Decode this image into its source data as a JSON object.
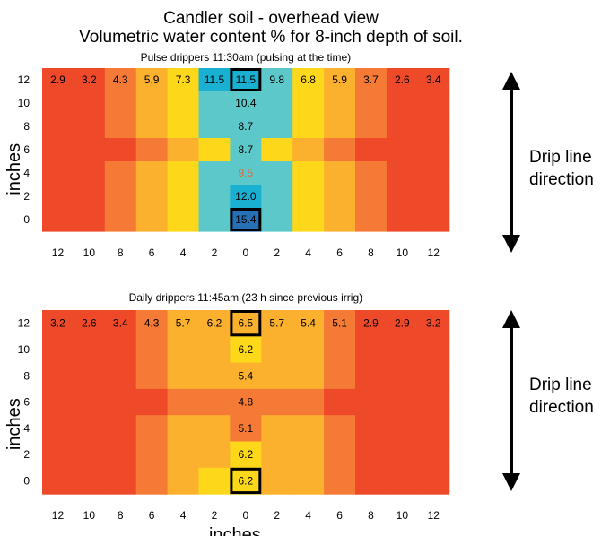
{
  "titles": {
    "line1": "Candler soil - overhead view",
    "line2": "Volumetric water content % for 8-inch depth of soil."
  },
  "side_label": {
    "line1": "Drip line",
    "line2": "direction"
  },
  "colors": {
    "red": "#ee4a2a",
    "orange": "#f57a36",
    "light_orange": "#fbb12e",
    "yellow": "#fdd81a",
    "cyan": "#5cc8c9",
    "teal": "#1ab0d2",
    "blue": "#2670b8",
    "highlight_text": "#e46a3b"
  },
  "chart_data": [
    {
      "type": "heatmap",
      "title": "Pulse drippers 11:30am (pulsing at the time)",
      "ylabel": "inches",
      "xlabel": "",
      "x_tick_labels": [
        "12",
        "10",
        "8",
        "6",
        "4",
        "2",
        "0",
        "2",
        "4",
        "6",
        "8",
        "10",
        "12"
      ],
      "y_tick_labels": [
        "12",
        "10",
        "8",
        "6",
        "4",
        "2",
        "0"
      ],
      "colors": [
        [
          "red",
          "red",
          "orange",
          "light_orange",
          "yellow",
          "teal",
          "teal",
          "cyan",
          "yellow",
          "light_orange",
          "orange",
          "red",
          "red"
        ],
        [
          "red",
          "red",
          "orange",
          "light_orange",
          "yellow",
          "cyan",
          "cyan",
          "cyan",
          "yellow",
          "light_orange",
          "orange",
          "red",
          "red"
        ],
        [
          "red",
          "red",
          "orange",
          "light_orange",
          "yellow",
          "cyan",
          "cyan",
          "cyan",
          "yellow",
          "light_orange",
          "orange",
          "red",
          "red"
        ],
        [
          "red",
          "red",
          "red",
          "orange",
          "light_orange",
          "yellow",
          "cyan",
          "yellow",
          "light_orange",
          "orange",
          "red",
          "red",
          "red"
        ],
        [
          "red",
          "red",
          "orange",
          "light_orange",
          "yellow",
          "cyan",
          "cyan",
          "cyan",
          "yellow",
          "light_orange",
          "orange",
          "red",
          "red"
        ],
        [
          "red",
          "red",
          "orange",
          "light_orange",
          "yellow",
          "cyan",
          "teal",
          "cyan",
          "yellow",
          "light_orange",
          "orange",
          "red",
          "red"
        ],
        [
          "red",
          "red",
          "orange",
          "light_orange",
          "yellow",
          "cyan",
          "blue",
          "cyan",
          "yellow",
          "light_orange",
          "orange",
          "red",
          "red"
        ]
      ],
      "labels": [
        [
          "2.9",
          "3.2",
          "4.3",
          "5.9",
          "7.3",
          "11.5",
          "11.5",
          "9.8",
          "6.8",
          "5.9",
          "3.7",
          "2.6",
          "3.4"
        ],
        [
          "",
          "",
          "",
          "",
          "",
          "",
          "10.4",
          "",
          "",
          "",
          "",
          "",
          ""
        ],
        [
          "",
          "",
          "",
          "",
          "",
          "",
          "8.7",
          "",
          "",
          "",
          "",
          "",
          ""
        ],
        [
          "",
          "",
          "",
          "",
          "",
          "",
          "8.7",
          "",
          "",
          "",
          "",
          "",
          ""
        ],
        [
          "",
          "",
          "",
          "",
          "",
          "",
          "9.5",
          "",
          "",
          "",
          "",
          "",
          ""
        ],
        [
          "",
          "",
          "",
          "",
          "",
          "",
          "12.0",
          "",
          "",
          "",
          "",
          "",
          ""
        ],
        [
          "",
          "",
          "",
          "",
          "",
          "",
          "15.4",
          "",
          "",
          "",
          "",
          "",
          ""
        ]
      ],
      "highlight_labels": [
        [
          4,
          6
        ]
      ],
      "boxed_cells": [
        [
          0,
          6
        ],
        [
          6,
          6
        ]
      ]
    },
    {
      "type": "heatmap",
      "title": "Daily drippers 11:45am (23 h since previous irrig)",
      "ylabel": "inches",
      "xlabel": "inches",
      "x_tick_labels": [
        "12",
        "10",
        "8",
        "6",
        "4",
        "2",
        "0",
        "2",
        "4",
        "6",
        "8",
        "10",
        "12"
      ],
      "y_tick_labels": [
        "12",
        "10",
        "8",
        "6",
        "4",
        "2",
        "0"
      ],
      "colors": [
        [
          "red",
          "red",
          "red",
          "orange",
          "light_orange",
          "light_orange",
          "light_orange",
          "light_orange",
          "light_orange",
          "orange",
          "red",
          "red",
          "red"
        ],
        [
          "red",
          "red",
          "red",
          "orange",
          "light_orange",
          "light_orange",
          "yellow",
          "light_orange",
          "light_orange",
          "orange",
          "red",
          "red",
          "red"
        ],
        [
          "red",
          "red",
          "red",
          "orange",
          "light_orange",
          "light_orange",
          "light_orange",
          "light_orange",
          "light_orange",
          "orange",
          "red",
          "red",
          "red"
        ],
        [
          "red",
          "red",
          "red",
          "red",
          "orange",
          "orange",
          "orange",
          "orange",
          "orange",
          "red",
          "red",
          "red",
          "red"
        ],
        [
          "red",
          "red",
          "red",
          "orange",
          "light_orange",
          "light_orange",
          "orange",
          "light_orange",
          "light_orange",
          "orange",
          "red",
          "red",
          "red"
        ],
        [
          "red",
          "red",
          "red",
          "orange",
          "light_orange",
          "light_orange",
          "yellow",
          "light_orange",
          "light_orange",
          "orange",
          "red",
          "red",
          "red"
        ],
        [
          "red",
          "red",
          "red",
          "orange",
          "light_orange",
          "yellow",
          "yellow",
          "light_orange",
          "light_orange",
          "orange",
          "red",
          "red",
          "red"
        ]
      ],
      "labels": [
        [
          "3.2",
          "2.6",
          "3.4",
          "4.3",
          "5.7",
          "6.2",
          "6.5",
          "5.7",
          "5.4",
          "5.1",
          "2.9",
          "2.9",
          "3.2"
        ],
        [
          "",
          "",
          "",
          "",
          "",
          "",
          "6.2",
          "",
          "",
          "",
          "",
          "",
          ""
        ],
        [
          "",
          "",
          "",
          "",
          "",
          "",
          "5.4",
          "",
          "",
          "",
          "",
          "",
          ""
        ],
        [
          "",
          "",
          "",
          "",
          "",
          "",
          "4.8",
          "",
          "",
          "",
          "",
          "",
          ""
        ],
        [
          "",
          "",
          "",
          "",
          "",
          "",
          "5.1",
          "",
          "",
          "",
          "",
          "",
          ""
        ],
        [
          "",
          "",
          "",
          "",
          "",
          "",
          "6.2",
          "",
          "",
          "",
          "",
          "",
          ""
        ],
        [
          "",
          "",
          "",
          "",
          "",
          "",
          "6.2",
          "",
          "",
          "",
          "",
          "",
          ""
        ]
      ],
      "highlight_labels": [],
      "boxed_cells": [
        [
          0,
          6
        ],
        [
          6,
          6
        ]
      ]
    }
  ]
}
